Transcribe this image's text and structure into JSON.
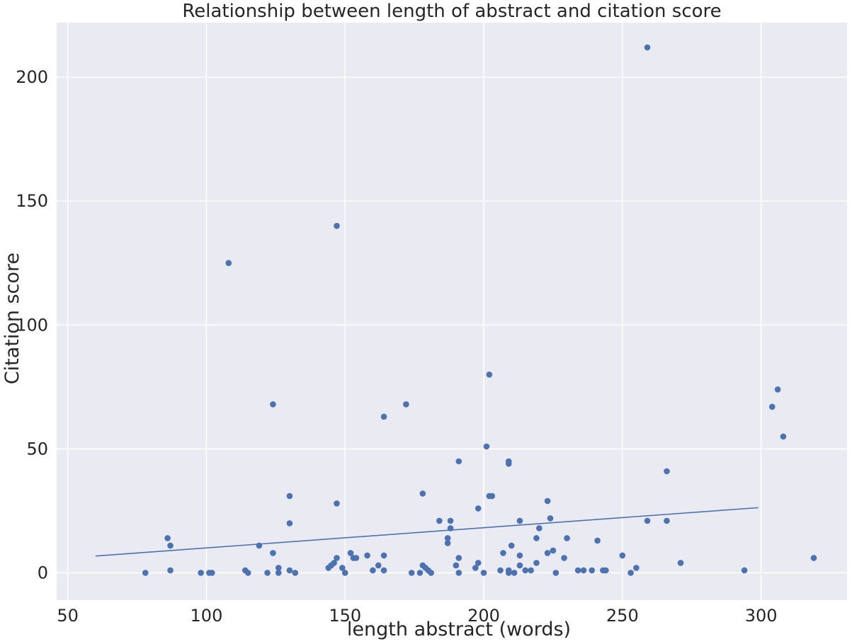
{
  "chart_data": {
    "type": "scatter",
    "title": "Relationship between length of abstract and citation score",
    "xlabel": "length abstract (words)",
    "ylabel": "Citation score",
    "xlim": [
      46,
      331
    ],
    "ylim": [
      -11,
      222
    ],
    "xticks": [
      50,
      100,
      150,
      200,
      250,
      300
    ],
    "yticks": [
      0,
      50,
      100,
      150,
      200
    ],
    "grid": true,
    "colors": {
      "background": "#eaeaf2",
      "grid": "#ffffff",
      "point": "#4c72b0",
      "line": "#4c72b0"
    },
    "series": [
      {
        "type": "scatter",
        "x": [
          78,
          86,
          87,
          87,
          98,
          101,
          102,
          108,
          114,
          115,
          119,
          122,
          124,
          124,
          126,
          126,
          130,
          130,
          130,
          132,
          144,
          145,
          146,
          147,
          147,
          147,
          149,
          150,
          152,
          153,
          154,
          158,
          160,
          162,
          164,
          164,
          164,
          172,
          174,
          177,
          178,
          178,
          179,
          180,
          181,
          184,
          187,
          187,
          188,
          188,
          190,
          191,
          191,
          191,
          197,
          198,
          198,
          200,
          201,
          202,
          202,
          203,
          207,
          206,
          209,
          209,
          209,
          209,
          210,
          211,
          213,
          213,
          213,
          215,
          217,
          219,
          219,
          220,
          223,
          223,
          224,
          225,
          226,
          229,
          230,
          234,
          236,
          239,
          241,
          243,
          244,
          250,
          253,
          255,
          259,
          259,
          266,
          266,
          271,
          294,
          304,
          306,
          308,
          319
        ],
        "y": [
          0,
          14,
          11,
          1,
          0,
          0,
          0,
          125,
          1,
          0,
          11,
          0,
          68,
          8,
          0,
          2,
          31,
          20,
          1,
          0,
          2,
          3,
          4,
          140,
          28,
          6,
          2,
          0,
          8,
          6,
          6,
          7,
          1,
          3,
          63,
          7,
          1,
          68,
          0,
          0,
          32,
          3,
          2,
          1,
          0,
          21,
          12,
          14,
          21,
          18,
          3,
          45,
          6,
          0,
          2,
          26,
          4,
          0,
          51,
          80,
          31,
          31,
          8,
          1,
          44,
          45,
          1,
          0,
          11,
          0,
          21,
          7,
          3,
          1,
          1,
          14,
          4,
          18,
          29,
          8,
          22,
          9,
          0,
          6,
          14,
          1,
          1,
          1,
          13,
          1,
          1,
          7,
          0,
          2,
          212,
          21,
          41,
          21,
          4,
          1,
          67,
          74,
          55,
          6
        ]
      },
      {
        "type": "line",
        "x": [
          60,
          299
        ],
        "y": [
          6.8,
          26.3
        ]
      }
    ]
  }
}
